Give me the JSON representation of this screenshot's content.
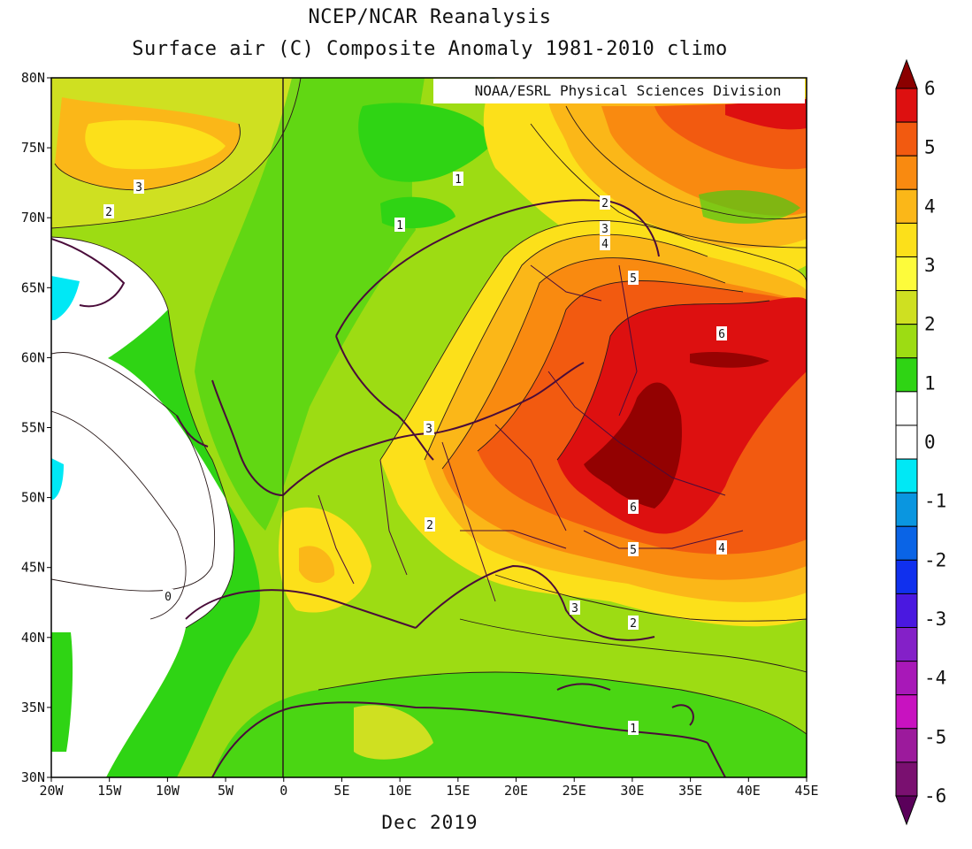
{
  "title": {
    "line1": "NCEP/NCAR Reanalysis",
    "line2": "Surface air (C) Composite Anomaly 1981-2010 climo"
  },
  "credit": "NOAA/ESRL Physical Sciences Division",
  "period": "Dec 2019",
  "map": {
    "lon_range": [
      -20,
      45
    ],
    "lat_range": [
      30,
      80
    ],
    "lat_ticks": [
      "80N",
      "75N",
      "70N",
      "65N",
      "60N",
      "55N",
      "50N",
      "45N",
      "40N",
      "35N",
      "30N"
    ],
    "lon_ticks": [
      "20W",
      "15W",
      "10W",
      "5W",
      "0",
      "5E",
      "10E",
      "15E",
      "20E",
      "25E",
      "30E",
      "35E",
      "40E",
      "45E"
    ],
    "contour_labels": [
      "3",
      "2",
      "1",
      "1",
      "2",
      "3",
      "4",
      "5",
      "6",
      "3",
      "2",
      "6",
      "5",
      "4",
      "3",
      "2",
      "1",
      "0"
    ]
  },
  "colorbar": {
    "labels": [
      "6",
      "5",
      "4",
      "3",
      "2",
      "1",
      "0",
      "-1",
      "-2",
      "-3",
      "-4",
      "-5",
      "-6"
    ],
    "colors": [
      "#8b0000",
      "#dd1010",
      "#f25a10",
      "#f98a10",
      "#fbb718",
      "#fce01a",
      "#fdfb3b",
      "#cfe021",
      "#9ddc13",
      "#2fd414",
      "#ffffff",
      "#ffffff",
      "#00e8f5",
      "#0a96e0",
      "#0a64e6",
      "#1030ee",
      "#4a18e0",
      "#8420c8",
      "#a818b8",
      "#c812c0",
      "#9c1a9c",
      "#7a1070",
      "#5a005a"
    ]
  }
}
